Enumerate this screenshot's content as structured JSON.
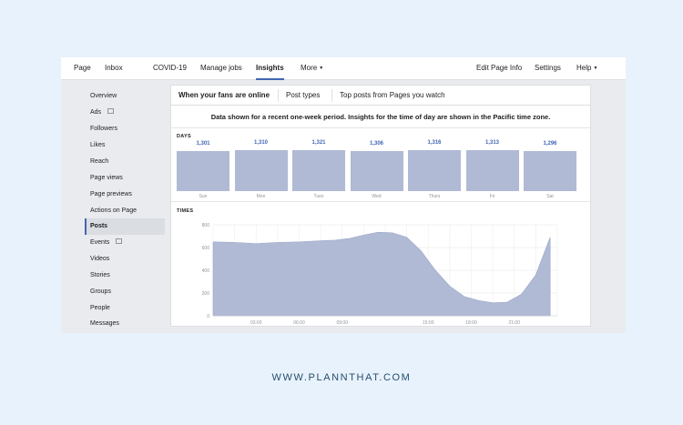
{
  "topnav": {
    "page": "Page",
    "inbox": "Inbox",
    "covid": "COVID-19",
    "manage_jobs": "Manage jobs",
    "insights": "Insights",
    "more": "More",
    "edit_page_info": "Edit Page Info",
    "settings": "Settings",
    "help": "Help"
  },
  "sidebar": {
    "items": [
      {
        "label": "Overview"
      },
      {
        "label": "Ads"
      },
      {
        "label": "Followers"
      },
      {
        "label": "Likes"
      },
      {
        "label": "Reach"
      },
      {
        "label": "Page views"
      },
      {
        "label": "Page previews"
      },
      {
        "label": "Actions on Page"
      },
      {
        "label": "Posts"
      },
      {
        "label": "Events"
      },
      {
        "label": "Videos"
      },
      {
        "label": "Stories"
      },
      {
        "label": "Groups"
      },
      {
        "label": "People"
      },
      {
        "label": "Messages"
      }
    ],
    "active_index": 8
  },
  "tabs": {
    "fans_online": "When your fans are online",
    "post_types": "Post types",
    "top_posts": "Top posts from Pages you watch"
  },
  "notice": "Data shown for a recent one-week period. Insights for the time of day are shown in the Pacific time zone.",
  "days_label": "DAYS",
  "times_label": "TIMES",
  "colors": {
    "accent": "#4267b2",
    "bar": "#b0bad4",
    "area": "#b0bad4"
  },
  "footer": "WWW.PLANNTHAT.COM",
  "chart_data": [
    {
      "type": "bar",
      "title": "DAYS",
      "categories": [
        "Sun",
        "Mon",
        "Tues",
        "Wed",
        "Thurs",
        "Fri",
        "Sat"
      ],
      "values": [
        1301,
        1310,
        1321,
        1306,
        1316,
        1313,
        1296
      ],
      "value_labels": [
        "1,301",
        "1,310",
        "1,321",
        "1,306",
        "1,316",
        "1,313",
        "1,296"
      ]
    },
    {
      "type": "area",
      "title": "TIMES",
      "x": [
        0,
        1.5,
        3,
        4.5,
        6,
        7.5,
        8.5,
        9.5,
        10.5,
        11.5,
        12.5,
        13.5,
        14.5,
        15.5,
        16.5,
        17.5,
        18.5,
        19.5,
        20.5,
        21.5,
        22.5,
        23.5
      ],
      "values": [
        650,
        645,
        635,
        645,
        650,
        660,
        665,
        680,
        710,
        735,
        730,
        690,
        570,
        400,
        260,
        170,
        135,
        115,
        120,
        190,
        360,
        690
      ],
      "x_ticks": [
        "03:00",
        "06:00",
        "09:00",
        "15:00",
        "18:00",
        "21:00"
      ],
      "x_tick_values": [
        3,
        6,
        9,
        15,
        18,
        21
      ],
      "y_ticks": [
        0,
        200,
        400,
        600,
        800
      ],
      "ylim": [
        0,
        800
      ],
      "grid": true
    }
  ]
}
